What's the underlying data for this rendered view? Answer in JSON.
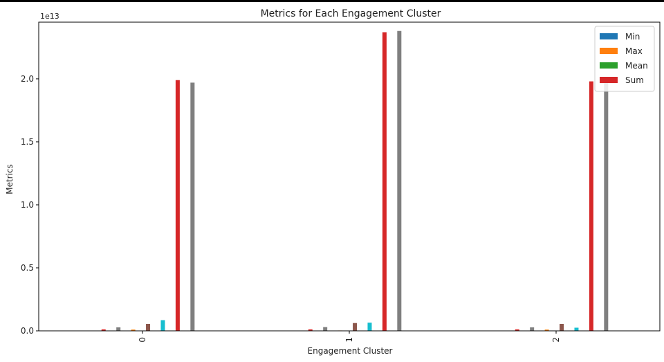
{
  "chart_data": {
    "type": "bar",
    "title": "Metrics for Each Engagement Cluster",
    "xlabel": "Engagement Cluster",
    "ylabel": "Metrics",
    "y_offset_text": "1e13",
    "y_scale": 10000000000000.0,
    "ylim": [
      0,
      2.45
    ],
    "yticks": [
      0.0,
      0.5,
      1.0,
      1.5,
      2.0
    ],
    "ytick_labels": [
      "0.0",
      "0.5",
      "1.0",
      "1.5",
      "2.0"
    ],
    "categories": [
      "0",
      "1",
      "2"
    ],
    "x_tick_rotation": 90,
    "grid": false,
    "legend_position": "top-right",
    "legend": [
      {
        "label": "Min",
        "color": "#1f77b4"
      },
      {
        "label": "Max",
        "color": "#ff7f0e"
      },
      {
        "label": "Mean",
        "color": "#2ca02c"
      },
      {
        "label": "Sum",
        "color": "#d62728"
      }
    ],
    "series": [
      {
        "color": "#1f77b4",
        "values": [
          0.002,
          0.002,
          0.002
        ]
      },
      {
        "color": "#ff7f0e",
        "values": [
          0.002,
          0.002,
          0.002
        ]
      },
      {
        "color": "#2ca02c",
        "values": [
          0.002,
          0.002,
          0.002
        ]
      },
      {
        "color": "#d62728",
        "values": [
          0.012,
          0.012,
          0.012
        ]
      },
      {
        "color": "#9467bd",
        "values": [
          0.002,
          0.002,
          0.002
        ]
      },
      {
        "color": "#8c564b",
        "values": [
          0.002,
          0.002,
          0.002
        ]
      },
      {
        "color": "#e377c2",
        "values": [
          0.002,
          0.002,
          0.002
        ]
      },
      {
        "color": "#7f7f7f",
        "values": [
          0.028,
          0.03,
          0.028
        ]
      },
      {
        "color": "#bcbd22",
        "values": [
          0.002,
          0.002,
          0.002
        ]
      },
      {
        "color": "#17becf",
        "values": [
          0.002,
          0.002,
          0.002
        ]
      },
      {
        "color": "#1f77b4",
        "values": [
          0.002,
          0.002,
          0.002
        ]
      },
      {
        "color": "#ff7f0e",
        "values": [
          0.01,
          0.003,
          0.01
        ]
      },
      {
        "color": "#2ca02c",
        "values": [
          0.002,
          0.002,
          0.002
        ]
      },
      {
        "color": "#d62728",
        "values": [
          0.002,
          0.002,
          0.002
        ]
      },
      {
        "color": "#9467bd",
        "values": [
          0.002,
          0.002,
          0.002
        ]
      },
      {
        "color": "#8c564b",
        "values": [
          0.055,
          0.062,
          0.055
        ]
      },
      {
        "color": "#e377c2",
        "values": [
          0.002,
          0.002,
          0.002
        ]
      },
      {
        "color": "#7f7f7f",
        "values": [
          0.002,
          0.002,
          0.002
        ]
      },
      {
        "color": "#bcbd22",
        "values": [
          0.002,
          0.002,
          0.002
        ]
      },
      {
        "color": "#17becf",
        "values": [
          0.085,
          0.065,
          0.025
        ]
      },
      {
        "color": "#1f77b4",
        "values": [
          0.002,
          0.002,
          0.002
        ]
      },
      {
        "color": "#ff7f0e",
        "values": [
          0.002,
          0.002,
          0.002
        ]
      },
      {
        "color": "#2ca02c",
        "values": [
          0.002,
          0.002,
          0.002
        ]
      },
      {
        "color": "#d62728",
        "values": [
          1.99,
          2.37,
          1.98
        ]
      },
      {
        "color": "#9467bd",
        "values": [
          0.002,
          0.002,
          0.002
        ]
      },
      {
        "color": "#8c564b",
        "values": [
          0.002,
          0.002,
          0.002
        ]
      },
      {
        "color": "#e377c2",
        "values": [
          0.002,
          0.002,
          0.002
        ]
      },
      {
        "color": "#7f7f7f",
        "values": [
          1.97,
          2.38,
          1.97
        ]
      }
    ]
  }
}
